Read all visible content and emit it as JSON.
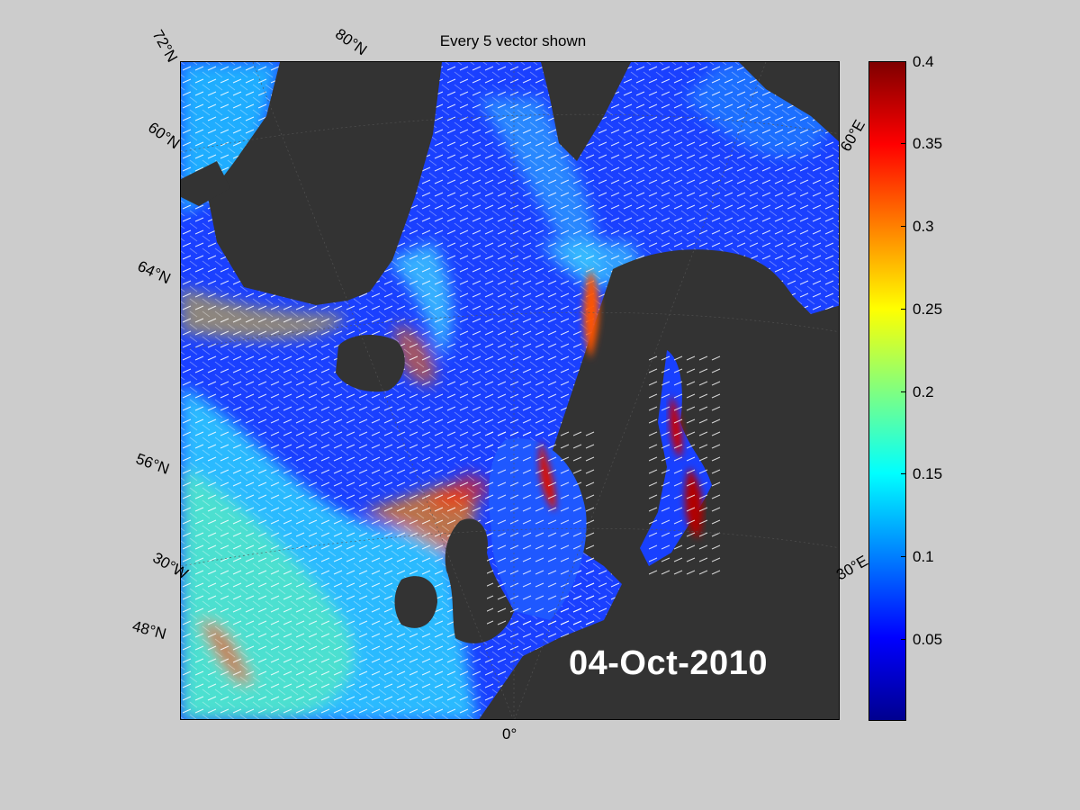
{
  "title": "Every 5 vector shown",
  "date": "04-Oct-2010",
  "lat_labels": [
    "72°N",
    "80°N",
    "60°N",
    "64°N",
    "56°N",
    "48°N"
  ],
  "lon_labels": [
    "60°E",
    "30°E",
    "30°W",
    "0°"
  ],
  "colorbar": {
    "ticks": [
      "0.4",
      "0.35",
      "0.3",
      "0.25",
      "0.2",
      "0.15",
      "0.1",
      "0.05"
    ],
    "stops": [
      "#7f0000",
      "#ff0000",
      "#ff8000",
      "#ffff00",
      "#80ff80",
      "#00ffff",
      "#0080ff",
      "#0000ff",
      "#00008f"
    ]
  },
  "colors": {
    "background": "#cccccc",
    "land": "#333333",
    "ocean_base": "#1a3cff",
    "vector": "#ffffff"
  }
}
